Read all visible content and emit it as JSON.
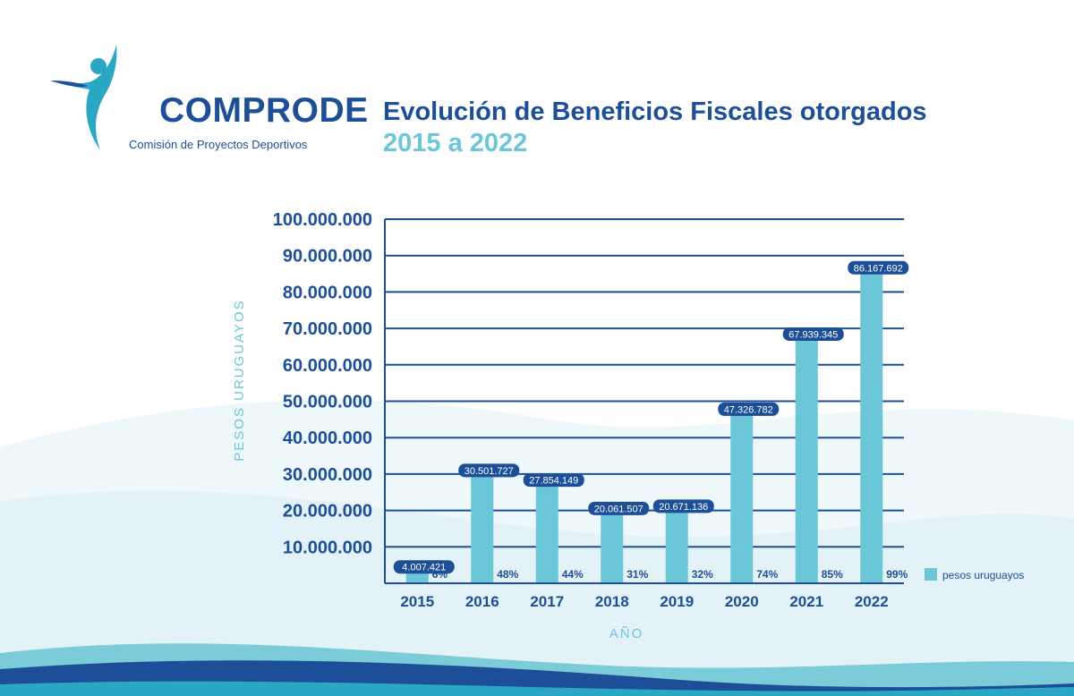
{
  "logo": {
    "name": "COMPRODE",
    "subtitle": "Comisión de Proyectos Deportivos"
  },
  "header": {
    "title": "Evolución de Beneficios Fiscales otorgados",
    "subtitle": "2015 a 2022"
  },
  "colors": {
    "navy": "#1c4f97",
    "bar": "#6bc6d7",
    "label_bg": "#1c4f97"
  },
  "chart_data": {
    "type": "bar",
    "title": "Evolución de Beneficios Fiscales otorgados",
    "subtitle": "2015 a 2022",
    "xlabel": "AÑO",
    "ylabel": "PESOS URUGUAYOS",
    "categories": [
      "2015",
      "2016",
      "2017",
      "2018",
      "2019",
      "2020",
      "2021",
      "2022"
    ],
    "series": [
      {
        "name": "pesos uruguayos",
        "values": [
          4007421,
          30501727,
          27854149,
          20061507,
          20671136,
          47326782,
          67939345,
          86167692
        ],
        "value_labels": [
          "4.007.421",
          "30.501.727",
          "27.854.149",
          "20.061.507",
          "20.671.136",
          "47.326.782",
          "67.939.345",
          "86.167.692"
        ],
        "percent_labels": [
          "6%",
          "48%",
          "44%",
          "31%",
          "32%",
          "74%",
          "85%",
          "99%"
        ]
      }
    ],
    "ylim": [
      0,
      100000000
    ],
    "yticks": [
      10000000,
      20000000,
      30000000,
      40000000,
      50000000,
      60000000,
      70000000,
      80000000,
      90000000,
      100000000
    ],
    "ytick_labels": [
      "10.000.000",
      "20.000.000",
      "30.000.000",
      "40.000.000",
      "50.000.000",
      "60.000.000",
      "70.000.000",
      "80.000.000",
      "90.000.000",
      "100.000.000"
    ],
    "grid": true,
    "legend": {
      "position": "right",
      "label": "pesos uruguayos"
    }
  }
}
